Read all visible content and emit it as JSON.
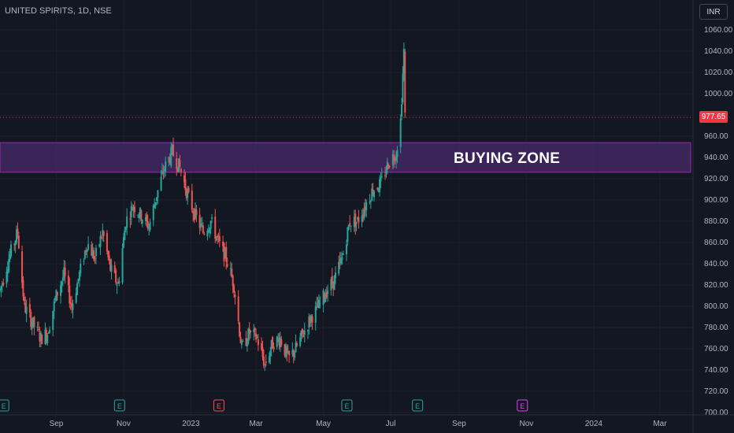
{
  "header": {
    "symbol": "UNITED SPIRITS, 1D, NSE",
    "currency": "INR"
  },
  "annotation": {
    "label": "BUYING ZONE",
    "zone_low": 926,
    "zone_high": 954,
    "fill": "#4a2a6b",
    "border": "#9c27b0"
  },
  "last_price": {
    "value": 977.65,
    "label": "977.65",
    "color": "#f23645"
  },
  "colors": {
    "up": "#26a69a",
    "down": "#ef5350",
    "background": "#131722"
  },
  "chart_data": {
    "type": "candlestick",
    "title": "UNITED SPIRITS, 1D, NSE",
    "ylim": [
      700,
      1070
    ],
    "y_ticks": [
      700,
      720,
      740,
      760,
      780,
      800,
      820,
      840,
      860,
      880,
      900,
      920,
      940,
      960,
      980,
      1000,
      1020,
      1040,
      1060
    ],
    "y_tick_labels": [
      "700.00",
      "720.00",
      "740.00",
      "760.00",
      "780.00",
      "800.00",
      "820.00",
      "840.00",
      "860.00",
      "880.00",
      "900.00",
      "920.00",
      "940.00",
      "960.00",
      "980.00",
      "1000.00",
      "1020.00",
      "1040.00",
      "1060.00"
    ],
    "x_tick_labels": [
      "Sep",
      "Nov",
      "2023",
      "Mar",
      "May",
      "Jul",
      "Sep",
      "Nov",
      "2024",
      "Mar"
    ],
    "x_range": [
      "2022-07-12",
      "2024-03-31"
    ],
    "x_ticks": [
      "2022-09-01",
      "2022-11-01",
      "2023-01-01",
      "2023-03-01",
      "2023-05-01",
      "2023-07-01",
      "2023-09-01",
      "2023-11-01",
      "2024-01-01",
      "2024-03-01"
    ],
    "close_path": [
      [
        "2022-07-12",
        815
      ],
      [
        "2022-07-20",
        845
      ],
      [
        "2022-07-28",
        870
      ],
      [
        "2022-08-03",
        800
      ],
      [
        "2022-08-10",
        785
      ],
      [
        "2022-08-18",
        770
      ],
      [
        "2022-08-24",
        775
      ],
      [
        "2022-09-01",
        810
      ],
      [
        "2022-09-08",
        830
      ],
      [
        "2022-09-15",
        800
      ],
      [
        "2022-09-22",
        830
      ],
      [
        "2022-09-29",
        860
      ],
      [
        "2022-10-06",
        845
      ],
      [
        "2022-10-13",
        870
      ],
      [
        "2022-10-20",
        835
      ],
      [
        "2022-10-27",
        820
      ],
      [
        "2022-11-03",
        880
      ],
      [
        "2022-11-10",
        895
      ],
      [
        "2022-11-17",
        885
      ],
      [
        "2022-11-24",
        875
      ],
      [
        "2022-12-01",
        905
      ],
      [
        "2022-12-08",
        930
      ],
      [
        "2022-12-15",
        945
      ],
      [
        "2022-12-22",
        930
      ],
      [
        "2022-12-29",
        905
      ],
      [
        "2023-01-05",
        885
      ],
      [
        "2023-01-12",
        870
      ],
      [
        "2023-01-19",
        880
      ],
      [
        "2023-01-26",
        860
      ],
      [
        "2023-02-02",
        845
      ],
      [
        "2023-02-09",
        820
      ],
      [
        "2023-02-16",
        760
      ],
      [
        "2023-02-23",
        775
      ],
      [
        "2023-03-02",
        770
      ],
      [
        "2023-03-09",
        745
      ],
      [
        "2023-03-16",
        765
      ],
      [
        "2023-03-23",
        770
      ],
      [
        "2023-03-30",
        750
      ],
      [
        "2023-04-06",
        760
      ],
      [
        "2023-04-13",
        775
      ],
      [
        "2023-04-20",
        790
      ],
      [
        "2023-04-27",
        800
      ],
      [
        "2023-05-04",
        815
      ],
      [
        "2023-05-11",
        825
      ],
      [
        "2023-05-18",
        845
      ],
      [
        "2023-05-25",
        880
      ],
      [
        "2023-06-01",
        880
      ],
      [
        "2023-06-08",
        895
      ],
      [
        "2023-06-15",
        910
      ],
      [
        "2023-06-22",
        915
      ],
      [
        "2023-06-29",
        935
      ],
      [
        "2023-07-06",
        945
      ],
      [
        "2023-07-10",
        975
      ],
      [
        "2023-07-13",
        1040
      ],
      [
        "2023-07-14",
        978
      ]
    ],
    "earnings_markers": [
      {
        "date": "2022-07-15",
        "label": "E",
        "color": "#26a69a"
      },
      {
        "date": "2022-10-28",
        "label": "E",
        "color": "#26a69a"
      },
      {
        "date": "2023-01-26",
        "label": "E",
        "color": "#ef5350"
      },
      {
        "date": "2023-05-22",
        "label": "E",
        "color": "#26a69a"
      },
      {
        "date": "2023-07-25",
        "label": "E",
        "color": "#26a69a"
      },
      {
        "date": "2023-10-28",
        "label": "E",
        "color": "#e040fb"
      }
    ]
  }
}
